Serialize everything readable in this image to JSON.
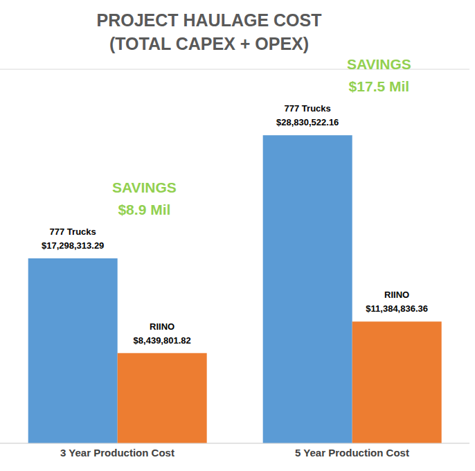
{
  "chart_data": {
    "type": "bar",
    "title": "PROJECT HAULAGE COST",
    "subtitle": "(TOTAL CAPEX + OPEX)",
    "categories": [
      "3 Year Production Cost",
      "5 Year Production Cost"
    ],
    "series": [
      {
        "name": "777 Trucks",
        "color": "#5b9bd5",
        "values": [
          17298313.29,
          28830522.16
        ],
        "value_labels": [
          "$17,298,313.29",
          "$28,830,522.16"
        ]
      },
      {
        "name": "RIINO",
        "color": "#ed7d31",
        "values": [
          8439801.82,
          11384836.36
        ],
        "value_labels": [
          "$8,439,801.82",
          "$11,384,836.36"
        ]
      }
    ],
    "ylim": [
      0,
      35000000
    ],
    "yticks": [
      0,
      5000000,
      10000000,
      15000000,
      20000000,
      25000000,
      30000000,
      35000000
    ],
    "grid": true,
    "data_labels": true,
    "tick_labels": "x",
    "annotations": [
      {
        "category": "3 Year Production Cost",
        "lines": [
          "SAVINGS",
          "$8.9 Mil"
        ],
        "color": "#92d050"
      },
      {
        "category": "5 Year Production Cost",
        "lines": [
          "SAVINGS",
          "$17.5 Mil"
        ],
        "color": "#92d050"
      }
    ]
  }
}
